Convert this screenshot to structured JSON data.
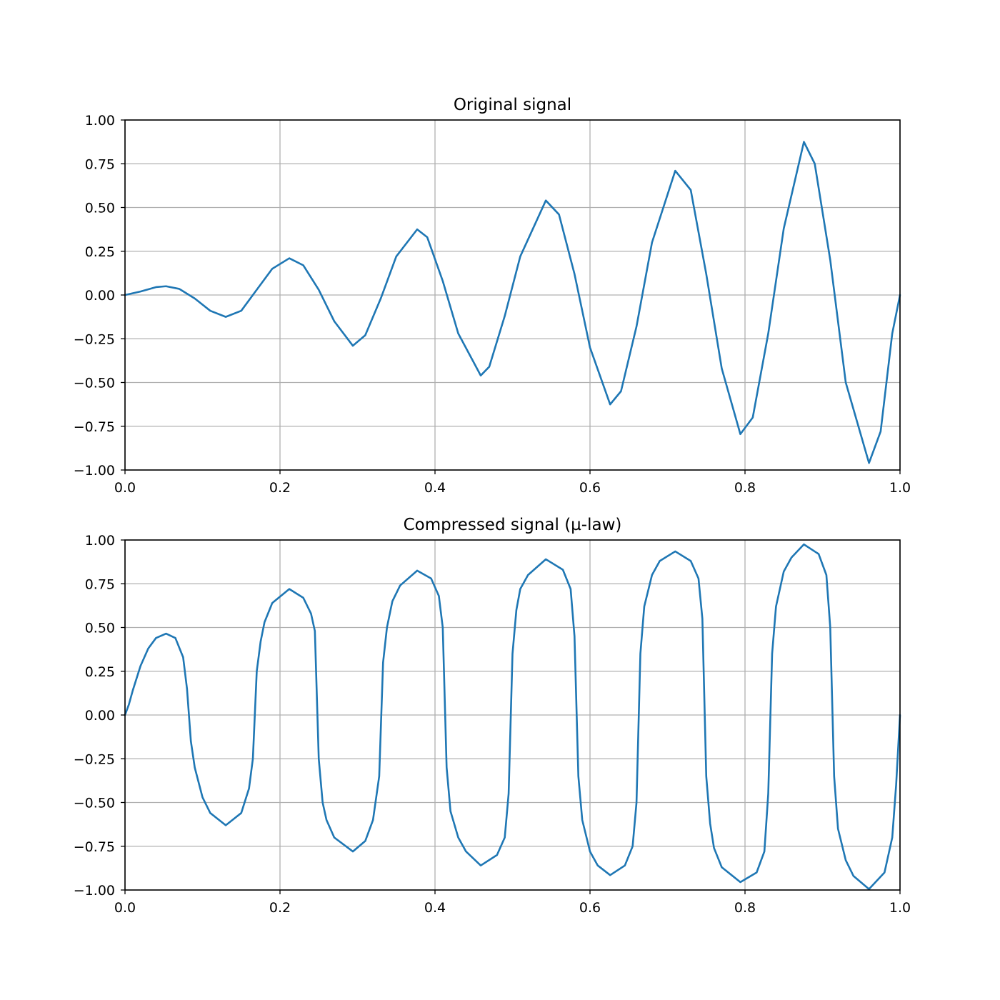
{
  "chart_data": [
    {
      "type": "line",
      "title": "Original signal",
      "xlabel": "",
      "ylabel": "",
      "xlim": [
        0.0,
        1.0
      ],
      "ylim": [
        -1.0,
        1.0
      ],
      "grid": true,
      "x_ticks": [
        "0.0",
        "0.2",
        "0.4",
        "0.6",
        "0.8",
        "1.0"
      ],
      "y_ticks": [
        "1.00",
        "0.75",
        "0.50",
        "0.25",
        "0.00",
        "−0.25",
        "−0.50",
        "−0.75",
        "−1.00"
      ],
      "color": "#1f77b4",
      "series": [
        {
          "x": [
            0.0,
            0.02,
            0.04,
            0.053,
            0.07,
            0.09,
            0.11,
            0.13,
            0.15,
            0.17,
            0.19,
            0.212,
            0.23,
            0.25,
            0.27,
            0.294,
            0.31,
            0.33,
            0.35,
            0.377,
            0.39,
            0.41,
            0.43,
            0.459,
            0.47,
            0.49,
            0.51,
            0.543,
            0.56,
            0.58,
            0.6,
            0.626,
            0.64,
            0.66,
            0.68,
            0.71,
            0.73,
            0.75,
            0.77,
            0.794,
            0.81,
            0.83,
            0.85,
            0.876,
            0.89,
            0.91,
            0.93,
            0.96,
            0.975,
            0.99,
            1.0
          ],
          "y": [
            0.0,
            0.02,
            0.045,
            0.05,
            0.035,
            -0.02,
            -0.09,
            -0.125,
            -0.09,
            0.03,
            0.15,
            0.21,
            0.17,
            0.03,
            -0.15,
            -0.29,
            -0.23,
            -0.02,
            0.22,
            0.375,
            0.33,
            0.08,
            -0.22,
            -0.46,
            -0.41,
            -0.12,
            0.22,
            0.54,
            0.46,
            0.12,
            -0.3,
            -0.625,
            -0.55,
            -0.18,
            0.3,
            0.71,
            0.6,
            0.12,
            -0.42,
            -0.795,
            -0.7,
            -0.22,
            0.38,
            0.875,
            0.75,
            0.2,
            -0.5,
            -0.96,
            -0.78,
            -0.22,
            0.0
          ]
        }
      ]
    },
    {
      "type": "line",
      "title": "Compressed signal (µ-law)",
      "xlabel": "",
      "ylabel": "",
      "xlim": [
        0.0,
        1.0
      ],
      "ylim": [
        -1.0,
        1.0
      ],
      "grid": true,
      "x_ticks": [
        "0.0",
        "0.2",
        "0.4",
        "0.6",
        "0.8",
        "1.0"
      ],
      "y_ticks": [
        "1.00",
        "0.75",
        "0.50",
        "0.25",
        "0.00",
        "−0.25",
        "−0.50",
        "−0.75",
        "−1.00"
      ],
      "color": "#1f77b4",
      "series": [
        {
          "x": [
            0.0,
            0.005,
            0.01,
            0.02,
            0.03,
            0.04,
            0.053,
            0.065,
            0.075,
            0.08,
            0.085,
            0.09,
            0.1,
            0.11,
            0.13,
            0.15,
            0.16,
            0.165,
            0.17,
            0.175,
            0.18,
            0.19,
            0.212,
            0.23,
            0.24,
            0.245,
            0.25,
            0.255,
            0.26,
            0.27,
            0.294,
            0.31,
            0.32,
            0.328,
            0.333,
            0.338,
            0.345,
            0.355,
            0.377,
            0.395,
            0.405,
            0.41,
            0.415,
            0.42,
            0.43,
            0.44,
            0.459,
            0.48,
            0.49,
            0.495,
            0.5,
            0.505,
            0.51,
            0.52,
            0.543,
            0.565,
            0.575,
            0.58,
            0.585,
            0.59,
            0.6,
            0.61,
            0.626,
            0.645,
            0.655,
            0.66,
            0.665,
            0.67,
            0.68,
            0.69,
            0.71,
            0.73,
            0.74,
            0.745,
            0.75,
            0.755,
            0.76,
            0.77,
            0.794,
            0.815,
            0.825,
            0.83,
            0.835,
            0.84,
            0.85,
            0.86,
            0.876,
            0.895,
            0.905,
            0.91,
            0.915,
            0.92,
            0.93,
            0.94,
            0.96,
            0.98,
            0.99,
            0.995,
            1.0
          ],
          "y": [
            0.0,
            0.06,
            0.14,
            0.28,
            0.38,
            0.44,
            0.465,
            0.44,
            0.33,
            0.15,
            -0.15,
            -0.3,
            -0.47,
            -0.56,
            -0.63,
            -0.56,
            -0.42,
            -0.25,
            0.25,
            0.42,
            0.53,
            0.64,
            0.72,
            0.67,
            0.58,
            0.48,
            -0.25,
            -0.5,
            -0.6,
            -0.7,
            -0.78,
            -0.72,
            -0.6,
            -0.35,
            0.3,
            0.5,
            0.65,
            0.74,
            0.825,
            0.78,
            0.68,
            0.5,
            -0.3,
            -0.55,
            -0.7,
            -0.78,
            -0.86,
            -0.8,
            -0.7,
            -0.45,
            0.35,
            0.6,
            0.72,
            0.8,
            0.89,
            0.83,
            0.72,
            0.45,
            -0.35,
            -0.6,
            -0.78,
            -0.86,
            -0.915,
            -0.86,
            -0.75,
            -0.5,
            0.35,
            0.62,
            0.8,
            0.88,
            0.935,
            0.88,
            0.78,
            0.55,
            -0.35,
            -0.62,
            -0.76,
            -0.87,
            -0.955,
            -0.9,
            -0.78,
            -0.45,
            0.35,
            0.62,
            0.82,
            0.9,
            0.975,
            0.92,
            0.8,
            0.5,
            -0.35,
            -0.65,
            -0.83,
            -0.92,
            -0.995,
            -0.9,
            -0.7,
            -0.4,
            0.0
          ]
        }
      ]
    }
  ]
}
